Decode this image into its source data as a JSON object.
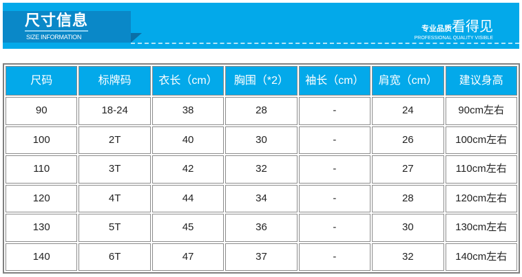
{
  "banner": {
    "title": "尺寸信息",
    "subtitle": "SIZE INFORMATION",
    "slogan_small": "专业品质",
    "slogan_big": "看得见",
    "slogan_en": "PROFESSIONAL QUALITY VISIBLE",
    "color": "#03a9ea"
  },
  "table": {
    "headers": [
      "尺码",
      "标牌码",
      "衣长（cm）",
      "胸围（*2）",
      "袖长（cm）",
      "肩宽（cm）",
      "建议身高"
    ],
    "rows": [
      [
        "90",
        "18-24",
        "38",
        "28",
        "-",
        "24",
        "90cm左右"
      ],
      [
        "100",
        "2T",
        "40",
        "30",
        "-",
        "26",
        "100cm左右"
      ],
      [
        "110",
        "3T",
        "42",
        "32",
        "-",
        "27",
        "110cm左右"
      ],
      [
        "120",
        "4T",
        "44",
        "34",
        "-",
        "28",
        "120cm左右"
      ],
      [
        "130",
        "5T",
        "45",
        "36",
        "-",
        "30",
        "130cm左右"
      ],
      [
        "140",
        "6T",
        "47",
        "37",
        "-",
        "32",
        "140cm左右"
      ]
    ]
  }
}
